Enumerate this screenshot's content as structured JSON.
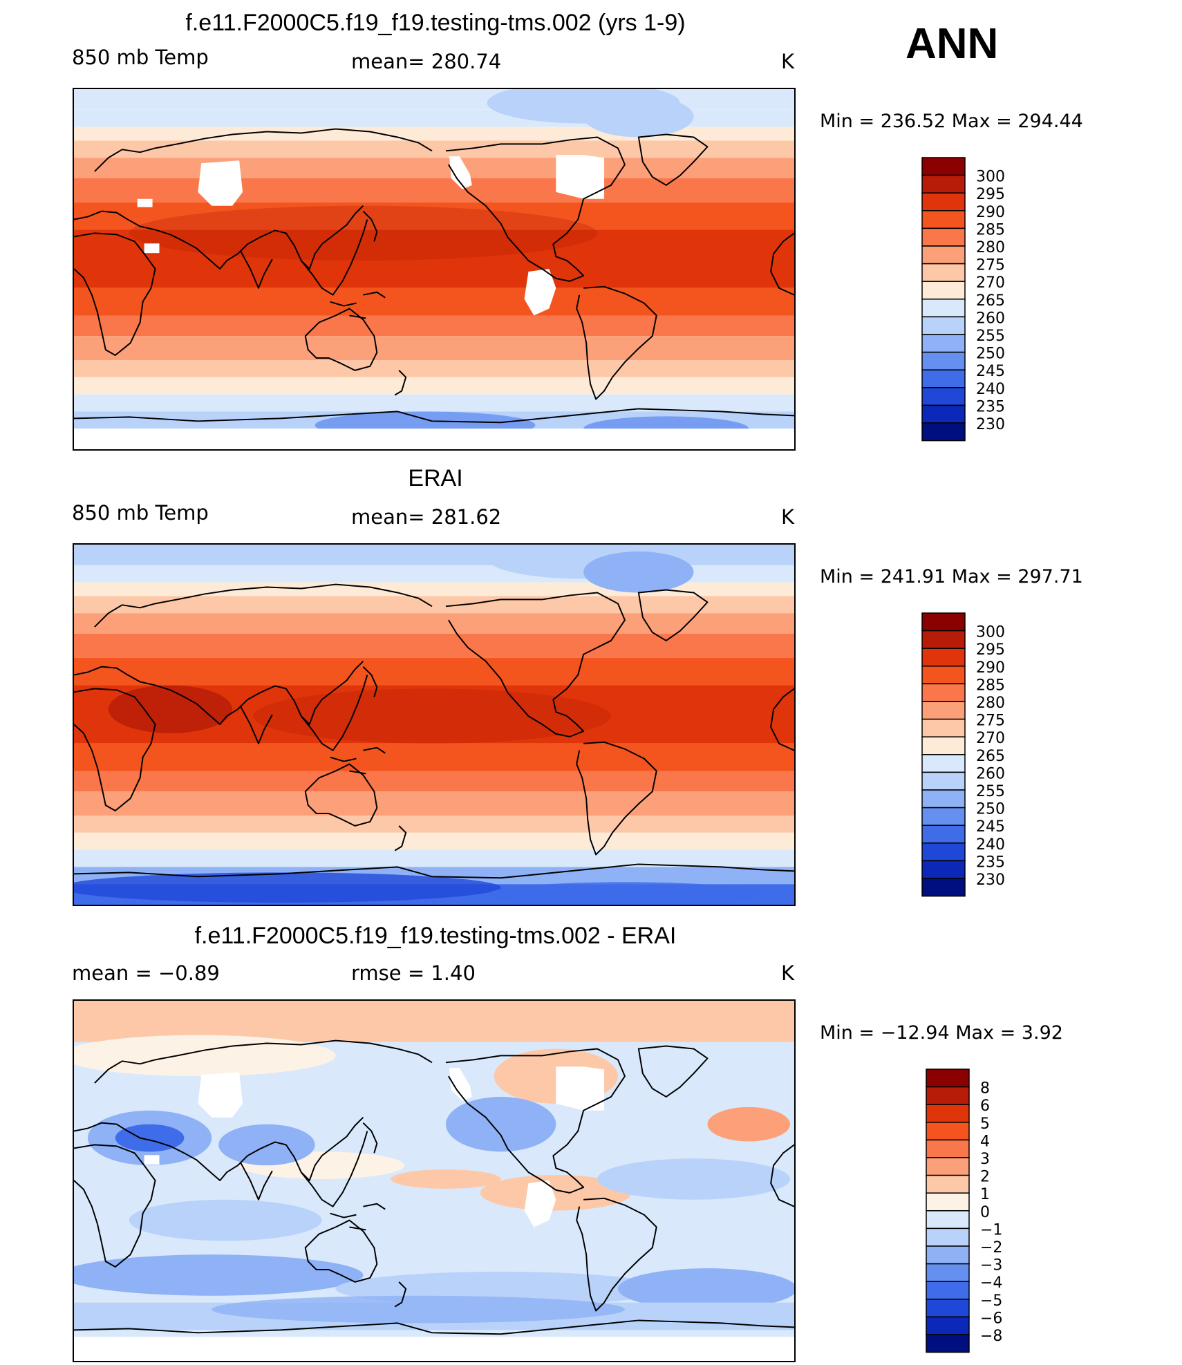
{
  "season": "ANN",
  "panels": [
    {
      "title": "f.e11.F2000C5.f19_f19.testing-tms.002 (yrs 1-9)",
      "left": "850 mb Temp",
      "center": "mean=  280.74",
      "right": "K",
      "minmax": "Min  =  236.52  Max  =  294.44",
      "colorbar_labels": [
        "300",
        "295",
        "290",
        "285",
        "280",
        "275",
        "270",
        "265",
        "260",
        "255",
        "250",
        "245",
        "240",
        "235",
        "230"
      ],
      "colorbar_colors": [
        "#8b0000",
        "#b71c08",
        "#e0350a",
        "#f4551e",
        "#f9774a",
        "#fca07a",
        "#fdc8a8",
        "#fdebd8",
        "#d9e9fb",
        "#b8d2fa",
        "#8fb2f6",
        "#6690f0",
        "#3f6ce8",
        "#1f48d8",
        "#0b28b8",
        "#000f80"
      ],
      "map_mode": "model"
    },
    {
      "title": "ERAI",
      "left": "850 mb Temp",
      "center": "mean=  281.62",
      "right": "K",
      "minmax": "Min  =  241.91  Max  =  297.71",
      "colorbar_labels": [
        "300",
        "295",
        "290",
        "285",
        "280",
        "275",
        "270",
        "265",
        "260",
        "255",
        "250",
        "245",
        "240",
        "235",
        "230"
      ],
      "colorbar_colors": [
        "#8b0000",
        "#b71c08",
        "#e0350a",
        "#f4551e",
        "#f9774a",
        "#fca07a",
        "#fdc8a8",
        "#fdebd8",
        "#d9e9fb",
        "#b8d2fa",
        "#8fb2f6",
        "#6690f0",
        "#3f6ce8",
        "#1f48d8",
        "#0b28b8",
        "#000f80"
      ],
      "map_mode": "obs"
    },
    {
      "title": "f.e11.F2000C5.f19_f19.testing-tms.002 - ERAI",
      "left": "mean  =    −0.89",
      "center": "rmse  =     1.40",
      "right": "K",
      "minmax": "Min  =  −12.94  Max  =     3.92",
      "colorbar_labels": [
        "8",
        "6",
        "5",
        "4",
        "3",
        "2",
        "1",
        "0",
        "−1",
        "−2",
        "−3",
        "−4",
        "−5",
        "−6",
        "−8"
      ],
      "colorbar_colors": [
        "#8b0000",
        "#b71c08",
        "#e0350a",
        "#f4551e",
        "#f9774a",
        "#fca07a",
        "#fdc8a8",
        "#fdf2e6",
        "#d9e9fb",
        "#b8d2fa",
        "#8fb2f6",
        "#6690f0",
        "#3f6ce8",
        "#1f48d8",
        "#0b28b8",
        "#000f80"
      ],
      "map_mode": "diff"
    }
  ]
}
